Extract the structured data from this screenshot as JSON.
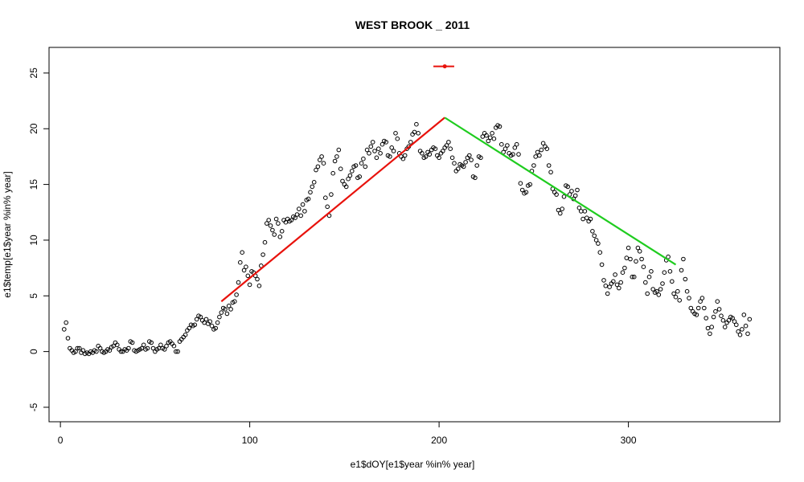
{
  "chart_data": {
    "type": "scatter",
    "title": "WEST BROOK _ 2011",
    "xlabel": "e1$dOY[e1$year %in% year]",
    "ylabel": "e1$temp[e1$year %in% year]",
    "xlim": [
      -6,
      380
    ],
    "ylim": [
      -6.3,
      27.3
    ],
    "x_ticks": [
      0,
      100,
      200,
      300
    ],
    "y_ticks": [
      -5,
      0,
      5,
      10,
      15,
      20,
      25
    ],
    "grid": false,
    "colors": {
      "points": "#000000",
      "rise_line": "#e8120c",
      "fall_line": "#1fcc1f",
      "breakpoint_marker": "#e8120c"
    },
    "points": [
      [
        2,
        2.0
      ],
      [
        3,
        2.6
      ],
      [
        4,
        1.2
      ],
      [
        5,
        0.3
      ],
      [
        6,
        0.1
      ],
      [
        7,
        -0.1
      ],
      [
        8,
        0.0
      ],
      [
        9,
        0.3
      ],
      [
        10,
        0.3
      ],
      [
        11,
        -0.1
      ],
      [
        12,
        0.1
      ],
      [
        13,
        -0.2
      ],
      [
        14,
        -0.1
      ],
      [
        15,
        -0.2
      ],
      [
        16,
        0.0
      ],
      [
        17,
        -0.1
      ],
      [
        18,
        0.1
      ],
      [
        19,
        0.0
      ],
      [
        20,
        0.5
      ],
      [
        21,
        0.3
      ],
      [
        22,
        0.0
      ],
      [
        23,
        -0.1
      ],
      [
        24,
        0.0
      ],
      [
        25,
        0.2
      ],
      [
        26,
        0.1
      ],
      [
        27,
        0.4
      ],
      [
        28,
        0.5
      ],
      [
        29,
        0.8
      ],
      [
        30,
        0.6
      ],
      [
        31,
        0.2
      ],
      [
        32,
        0.0
      ],
      [
        33,
        0.0
      ],
      [
        34,
        0.2
      ],
      [
        35,
        0.1
      ],
      [
        36,
        0.3
      ],
      [
        37,
        0.9
      ],
      [
        38,
        0.8
      ],
      [
        39,
        0.1
      ],
      [
        40,
        0.0
      ],
      [
        41,
        0.1
      ],
      [
        42,
        0.2
      ],
      [
        43,
        0.3
      ],
      [
        44,
        0.6
      ],
      [
        45,
        0.2
      ],
      [
        46,
        0.3
      ],
      [
        47,
        0.9
      ],
      [
        48,
        0.8
      ],
      [
        49,
        0.3
      ],
      [
        50,
        0.0
      ],
      [
        51,
        0.2
      ],
      [
        52,
        0.3
      ],
      [
        53,
        0.6
      ],
      [
        54,
        0.3
      ],
      [
        55,
        0.2
      ],
      [
        56,
        0.5
      ],
      [
        57,
        0.8
      ],
      [
        58,
        0.9
      ],
      [
        59,
        0.7
      ],
      [
        60,
        0.5
      ],
      [
        61,
        0.0
      ],
      [
        62,
        0.0
      ],
      [
        63,
        0.9
      ],
      [
        64,
        1.1
      ],
      [
        65,
        1.3
      ],
      [
        66,
        1.5
      ],
      [
        67,
        1.9
      ],
      [
        68,
        2.1
      ],
      [
        69,
        2.4
      ],
      [
        70,
        2.3
      ],
      [
        71,
        2.4
      ],
      [
        72,
        2.9
      ],
      [
        73,
        3.2
      ],
      [
        74,
        3.1
      ],
      [
        75,
        2.8
      ],
      [
        76,
        2.6
      ],
      [
        77,
        2.9
      ],
      [
        78,
        2.5
      ],
      [
        79,
        2.7
      ],
      [
        80,
        2.3
      ],
      [
        81,
        2.0
      ],
      [
        82,
        2.1
      ],
      [
        83,
        2.6
      ],
      [
        84,
        3.1
      ],
      [
        85,
        3.5
      ],
      [
        86,
        3.9
      ],
      [
        87,
        3.8
      ],
      [
        88,
        3.4
      ],
      [
        89,
        4.1
      ],
      [
        90,
        3.8
      ],
      [
        91,
        4.4
      ],
      [
        92,
        4.5
      ],
      [
        93,
        5.1
      ],
      [
        94,
        6.2
      ],
      [
        95,
        8.0
      ],
      [
        96,
        8.9
      ],
      [
        97,
        7.3
      ],
      [
        98,
        7.6
      ],
      [
        99,
        6.8
      ],
      [
        100,
        6.0
      ],
      [
        101,
        7.2
      ],
      [
        102,
        7.1
      ],
      [
        103,
        6.8
      ],
      [
        104,
        6.5
      ],
      [
        105,
        5.9
      ],
      [
        106,
        7.7
      ],
      [
        107,
        8.7
      ],
      [
        108,
        9.8
      ],
      [
        109,
        11.5
      ],
      [
        110,
        11.8
      ],
      [
        111,
        11.3
      ],
      [
        112,
        10.9
      ],
      [
        113,
        10.5
      ],
      [
        114,
        11.9
      ],
      [
        115,
        11.5
      ],
      [
        116,
        10.3
      ],
      [
        117,
        10.8
      ],
      [
        118,
        11.8
      ],
      [
        119,
        11.6
      ],
      [
        120,
        11.9
      ],
      [
        121,
        11.7
      ],
      [
        122,
        11.8
      ],
      [
        123,
        12.1
      ],
      [
        124,
        12.0
      ],
      [
        125,
        12.3
      ],
      [
        126,
        12.8
      ],
      [
        127,
        12.2
      ],
      [
        128,
        13.2
      ],
      [
        129,
        12.6
      ],
      [
        130,
        13.6
      ],
      [
        131,
        13.7
      ],
      [
        132,
        14.3
      ],
      [
        133,
        14.8
      ],
      [
        134,
        15.2
      ],
      [
        135,
        16.3
      ],
      [
        136,
        16.6
      ],
      [
        137,
        17.2
      ],
      [
        138,
        17.5
      ],
      [
        139,
        16.9
      ],
      [
        140,
        13.8
      ],
      [
        141,
        13.0
      ],
      [
        142,
        12.2
      ],
      [
        143,
        14.1
      ],
      [
        144,
        16.0
      ],
      [
        145,
        17.1
      ],
      [
        146,
        17.5
      ],
      [
        147,
        18.1
      ],
      [
        148,
        16.4
      ],
      [
        149,
        15.3
      ],
      [
        150,
        15.0
      ],
      [
        151,
        14.8
      ],
      [
        152,
        15.5
      ],
      [
        153,
        15.8
      ],
      [
        154,
        16.2
      ],
      [
        155,
        16.6
      ],
      [
        156,
        16.7
      ],
      [
        157,
        15.6
      ],
      [
        158,
        15.7
      ],
      [
        159,
        16.9
      ],
      [
        160,
        17.3
      ],
      [
        161,
        16.6
      ],
      [
        162,
        18.1
      ],
      [
        163,
        17.8
      ],
      [
        164,
        18.4
      ],
      [
        165,
        18.8
      ],
      [
        166,
        18.0
      ],
      [
        167,
        17.4
      ],
      [
        168,
        18.2
      ],
      [
        169,
        17.8
      ],
      [
        170,
        18.6
      ],
      [
        171,
        18.9
      ],
      [
        172,
        18.8
      ],
      [
        173,
        17.6
      ],
      [
        174,
        17.5
      ],
      [
        175,
        18.3
      ],
      [
        176,
        18.0
      ],
      [
        177,
        19.6
      ],
      [
        178,
        19.1
      ],
      [
        179,
        17.8
      ],
      [
        180,
        17.5
      ],
      [
        181,
        17.3
      ],
      [
        182,
        17.6
      ],
      [
        183,
        18.2
      ],
      [
        184,
        18.4
      ],
      [
        185,
        18.8
      ],
      [
        186,
        19.5
      ],
      [
        187,
        19.7
      ],
      [
        188,
        20.4
      ],
      [
        189,
        19.6
      ],
      [
        190,
        18.0
      ],
      [
        191,
        17.8
      ],
      [
        192,
        17.4
      ],
      [
        193,
        17.5
      ],
      [
        194,
        17.9
      ],
      [
        195,
        17.7
      ],
      [
        196,
        18.1
      ],
      [
        197,
        18.3
      ],
      [
        198,
        18.2
      ],
      [
        199,
        17.6
      ],
      [
        200,
        17.4
      ],
      [
        201,
        17.8
      ],
      [
        202,
        18.0
      ],
      [
        203,
        18.3
      ],
      [
        204,
        18.5
      ],
      [
        205,
        18.8
      ],
      [
        206,
        18.2
      ],
      [
        207,
        17.4
      ],
      [
        208,
        16.9
      ],
      [
        209,
        16.2
      ],
      [
        210,
        16.4
      ],
      [
        211,
        16.8
      ],
      [
        212,
        16.7
      ],
      [
        213,
        16.6
      ],
      [
        214,
        17.0
      ],
      [
        215,
        17.4
      ],
      [
        216,
        17.6
      ],
      [
        217,
        17.2
      ],
      [
        218,
        15.7
      ],
      [
        219,
        15.6
      ],
      [
        220,
        16.7
      ],
      [
        221,
        17.5
      ],
      [
        222,
        17.4
      ],
      [
        223,
        19.3
      ],
      [
        224,
        19.6
      ],
      [
        225,
        19.4
      ],
      [
        226,
        18.9
      ],
      [
        227,
        19.2
      ],
      [
        228,
        19.6
      ],
      [
        229,
        19.1
      ],
      [
        230,
        20.1
      ],
      [
        231,
        20.3
      ],
      [
        232,
        20.2
      ],
      [
        233,
        18.6
      ],
      [
        234,
        17.9
      ],
      [
        235,
        18.2
      ],
      [
        236,
        18.5
      ],
      [
        237,
        17.8
      ],
      [
        238,
        17.6
      ],
      [
        239,
        17.7
      ],
      [
        240,
        18.3
      ],
      [
        241,
        18.6
      ],
      [
        242,
        17.7
      ],
      [
        243,
        15.1
      ],
      [
        244,
        14.5
      ],
      [
        245,
        14.2
      ],
      [
        246,
        14.3
      ],
      [
        247,
        14.9
      ],
      [
        248,
        15.0
      ],
      [
        249,
        16.2
      ],
      [
        250,
        16.7
      ],
      [
        251,
        17.5
      ],
      [
        252,
        17.9
      ],
      [
        253,
        17.6
      ],
      [
        254,
        18.1
      ],
      [
        255,
        18.7
      ],
      [
        256,
        18.4
      ],
      [
        257,
        18.2
      ],
      [
        258,
        16.7
      ],
      [
        259,
        16.1
      ],
      [
        260,
        14.6
      ],
      [
        261,
        14.3
      ],
      [
        262,
        14.1
      ],
      [
        263,
        12.7
      ],
      [
        264,
        12.4
      ],
      [
        265,
        12.8
      ],
      [
        266,
        13.9
      ],
      [
        267,
        14.9
      ],
      [
        268,
        14.8
      ],
      [
        269,
        14.1
      ],
      [
        270,
        14.4
      ],
      [
        271,
        13.7
      ],
      [
        272,
        14.0
      ],
      [
        273,
        14.5
      ],
      [
        274,
        12.9
      ],
      [
        275,
        12.6
      ],
      [
        276,
        11.9
      ],
      [
        277,
        12.6
      ],
      [
        278,
        12.0
      ],
      [
        279,
        11.7
      ],
      [
        280,
        11.9
      ],
      [
        281,
        10.8
      ],
      [
        282,
        10.4
      ],
      [
        283,
        10.0
      ],
      [
        284,
        9.7
      ],
      [
        285,
        8.9
      ],
      [
        286,
        7.8
      ],
      [
        287,
        6.4
      ],
      [
        288,
        5.9
      ],
      [
        289,
        5.2
      ],
      [
        290,
        5.8
      ],
      [
        291,
        6.1
      ],
      [
        292,
        6.3
      ],
      [
        293,
        6.9
      ],
      [
        294,
        6.0
      ],
      [
        295,
        5.7
      ],
      [
        296,
        6.2
      ],
      [
        297,
        7.1
      ],
      [
        298,
        7.5
      ],
      [
        299,
        8.4
      ],
      [
        300,
        9.3
      ],
      [
        301,
        8.3
      ],
      [
        302,
        6.7
      ],
      [
        303,
        6.7
      ],
      [
        304,
        8.1
      ],
      [
        305,
        9.3
      ],
      [
        306,
        9.0
      ],
      [
        307,
        8.3
      ],
      [
        308,
        7.6
      ],
      [
        309,
        6.2
      ],
      [
        310,
        5.2
      ],
      [
        311,
        6.7
      ],
      [
        312,
        7.2
      ],
      [
        313,
        5.6
      ],
      [
        314,
        5.3
      ],
      [
        315,
        5.4
      ],
      [
        316,
        5.1
      ],
      [
        317,
        5.6
      ],
      [
        318,
        6.1
      ],
      [
        319,
        7.1
      ],
      [
        320,
        8.2
      ],
      [
        321,
        8.5
      ],
      [
        322,
        7.2
      ],
      [
        323,
        6.3
      ],
      [
        324,
        5.2
      ],
      [
        325,
        4.9
      ],
      [
        326,
        5.4
      ],
      [
        327,
        4.6
      ],
      [
        328,
        7.3
      ],
      [
        329,
        8.3
      ],
      [
        330,
        6.5
      ],
      [
        331,
        5.4
      ],
      [
        332,
        4.8
      ],
      [
        333,
        3.9
      ],
      [
        334,
        3.6
      ],
      [
        335,
        3.4
      ],
      [
        336,
        3.3
      ],
      [
        337,
        3.9
      ],
      [
        338,
        4.5
      ],
      [
        339,
        4.8
      ],
      [
        340,
        3.9
      ],
      [
        341,
        3.0
      ],
      [
        342,
        2.1
      ],
      [
        343,
        1.6
      ],
      [
        344,
        2.2
      ],
      [
        345,
        3.1
      ],
      [
        346,
        3.6
      ],
      [
        347,
        4.5
      ],
      [
        348,
        3.8
      ],
      [
        349,
        3.2
      ],
      [
        350,
        2.8
      ],
      [
        351,
        2.2
      ],
      [
        352,
        2.6
      ],
      [
        353,
        2.8
      ],
      [
        354,
        3.1
      ],
      [
        355,
        3.0
      ],
      [
        356,
        2.7
      ],
      [
        357,
        2.4
      ],
      [
        358,
        1.8
      ],
      [
        359,
        1.5
      ],
      [
        360,
        2.0
      ],
      [
        361,
        3.3
      ],
      [
        362,
        2.3
      ],
      [
        363,
        1.6
      ],
      [
        364,
        2.9
      ]
    ],
    "fit_lines": [
      {
        "x": [
          85,
          203
        ],
        "y": [
          4.5,
          21.0
        ]
      },
      {
        "x": [
          203,
          325
        ],
        "y": [
          21.0,
          7.8
        ]
      }
    ],
    "breakpoint_ci": {
      "x": [
        197,
        208
      ],
      "y": 25.6,
      "center": 203
    }
  }
}
